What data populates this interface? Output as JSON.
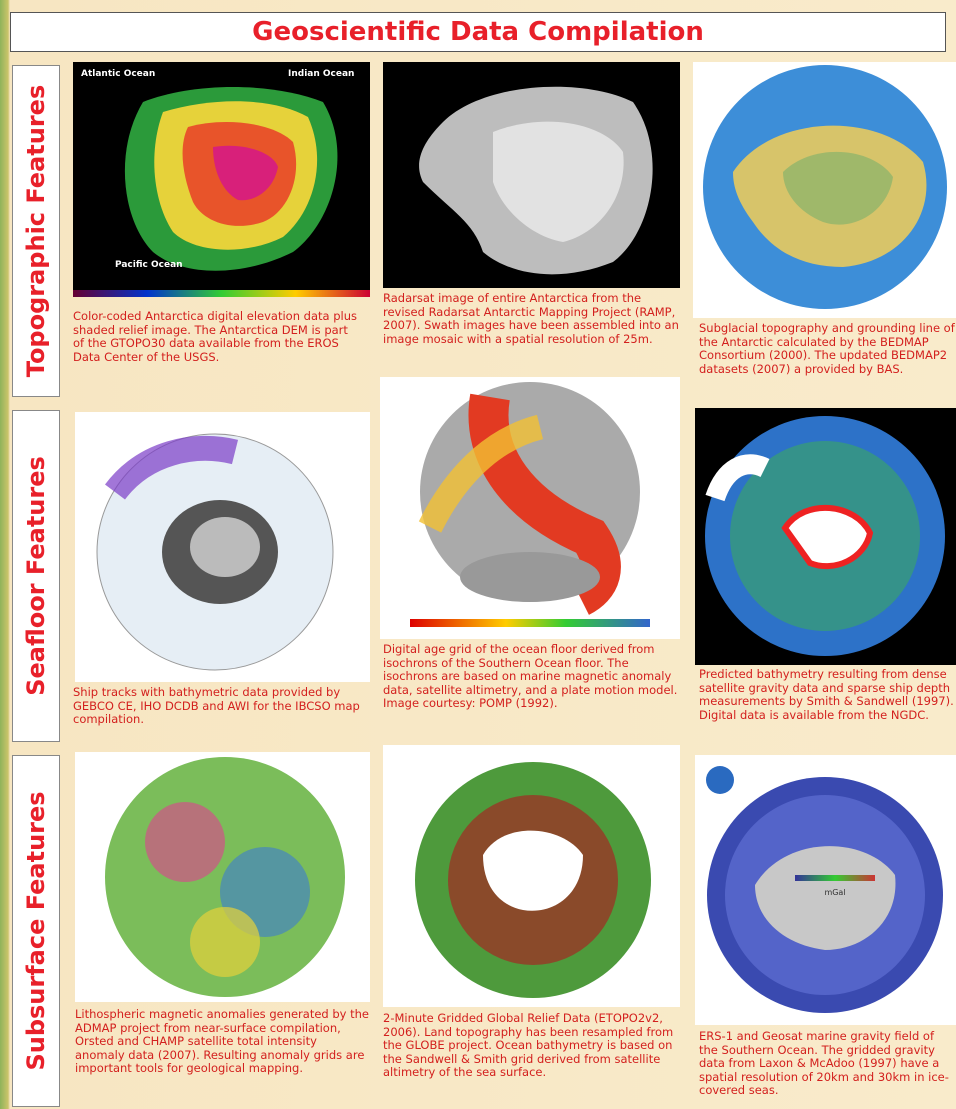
{
  "header": {
    "title": "Geoscientific Data Compilation"
  },
  "sections": [
    {
      "label": "Topographic Features"
    },
    {
      "label": "Seafloor Features"
    },
    {
      "label": "Subsurface Features"
    }
  ],
  "map_labels": {
    "atlantic": "Atlantic Ocean",
    "indian": "Indian Ocean",
    "pacific": "Pacific Ocean",
    "gravity_unit": "mGal"
  },
  "panels": [
    {
      "caption": "Color-coded Antarctica digital elevation data plus shaded relief image. The Antarctica DEM is part of the GTOPO30 data available from the EROS Data Center of the USGS."
    },
    {
      "caption": "Radarsat image of entire Antarctica from the revised Radarsat Antarctic Mapping Project (RAMP, 2007). Swath images have been assembled into an image mosaic with a spatial resolution of 25m."
    },
    {
      "caption": "Subglacial topography and grounding line of the Antarctic calculated by the BEDMAP Consortium (2000). The updated BEDMAP2 datasets (2007) a provided by BAS."
    },
    {
      "caption": "Ship tracks with bathymetric data provided by GEBCO CE, IHO DCDB and AWI for the IBCSO map compilation."
    },
    {
      "caption": "Digital age grid of the ocean floor derived from isochrons of the Southern Ocean floor. The isochrons are based on marine magnetic anomaly data, satellite altimetry, and a plate motion model. Image courtesy: POMP (1992)."
    },
    {
      "caption": "Predicted bathymetry resulting from dense satellite gravity data and sparse ship depth measurements by Smith & Sandwell (1997). Digital data is available from the NGDC."
    },
    {
      "caption": "Lithospheric magnetic anomalies generated by the ADMAP project from near-surface compilation, Orsted and CHAMP satellite total intensity anomaly data (2007). Resulting anomaly grids are important tools for geological mapping."
    },
    {
      "caption": "2-Minute Gridded Global Relief Data (ETOPO2v2, 2006). Land topography has been resampled from the GLOBE project. Ocean bathymetry is based on the Sandwell & Smith grid derived from satellite altimetry of the sea surface."
    },
    {
      "caption": "ERS-1 and Geosat marine gravity field of the Southern Ocean. The gridded gravity data from Laxon & McAdoo (1997) have a spatial resolution of 20km and 30km in ice-covered seas."
    }
  ]
}
